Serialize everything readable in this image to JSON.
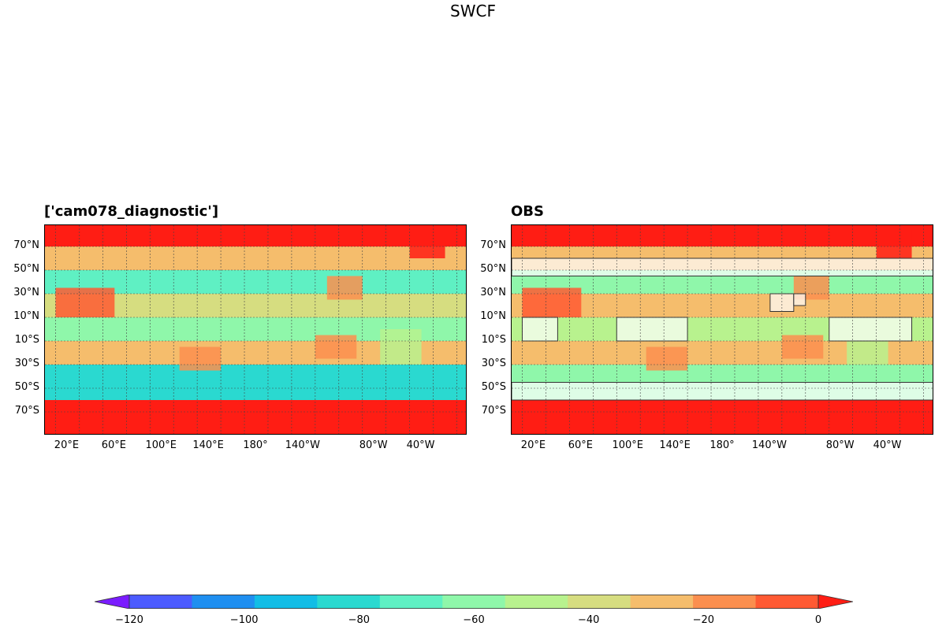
{
  "figure": {
    "title": "SWCF"
  },
  "chart_data": [
    {
      "type": "heatmap",
      "panel": "model",
      "title": "['cam078_diagnostic']",
      "projection": "PlateCarree, central longitude 180",
      "lat_tick_labels": [
        "70°N",
        "50°N",
        "30°N",
        "10°N",
        "10°S",
        "30°S",
        "50°S",
        "70°S"
      ],
      "lon_tick_labels": [
        "20°E",
        "60°E",
        "100°E",
        "140°E",
        "180°",
        "140°W",
        "80°W",
        "40°W"
      ],
      "grid": true,
      "field_description_by_lat_band": [
        {
          "lat": "70N-90N",
          "value": -10
        },
        {
          "lat": "50N-70N",
          "value": -35
        },
        {
          "lat": "30N-50N",
          "value": -75
        },
        {
          "lat": "10N-30N",
          "value": -45
        },
        {
          "lat": "10S-10N",
          "value": -65
        },
        {
          "lat": "30S-10S",
          "value": -40
        },
        {
          "lat": "60S-30S",
          "value": -85
        },
        {
          "lat": "90S-60S",
          "value": -5
        }
      ]
    },
    {
      "type": "heatmap",
      "panel": "obs",
      "title": "OBS",
      "projection": "PlateCarree, central longitude 180",
      "lat_tick_labels": [
        "70°N",
        "50°N",
        "30°N",
        "10°N",
        "10°S",
        "30°S",
        "50°S",
        "70°S"
      ],
      "lon_tick_labels": [
        "20°E",
        "60°E",
        "100°E",
        "140°E",
        "180°",
        "140°W",
        "80°W",
        "40°W"
      ],
      "grid": true,
      "field_description_by_lat_band": [
        {
          "lat": "70N-90N",
          "value": -10
        },
        {
          "lat": "50N-70N",
          "value": -40
        },
        {
          "lat": "30N-50N",
          "value": -70
        },
        {
          "lat": "10N-30N",
          "value": -40
        },
        {
          "lat": "10S-10N",
          "value": -55
        },
        {
          "lat": "30S-10S",
          "value": -35
        },
        {
          "lat": "60S-30S",
          "value": -70
        },
        {
          "lat": "90S-60S",
          "value": -5
        }
      ],
      "overlay_regions_lonlat": [
        {
          "lon": [
            0,
            360
          ],
          "lat": [
            45,
            60
          ]
        },
        {
          "lon": [
            0,
            360
          ],
          "lat": [
            -60,
            -45
          ]
        },
        {
          "lon": [
            90,
            150
          ],
          "lat": [
            -10,
            10
          ]
        },
        {
          "lon": [
            -90,
            -20
          ],
          "lat": [
            -10,
            10
          ]
        },
        {
          "lon": [
            10,
            40
          ],
          "lat": [
            -10,
            10
          ]
        },
        {
          "lon": [
            -140,
            -120
          ],
          "lat": [
            15,
            30
          ]
        },
        {
          "lon": [
            -120,
            -110
          ],
          "lat": [
            20,
            30
          ]
        }
      ]
    }
  ],
  "colorbar": {
    "levels": [
      -130,
      -120,
      -110,
      -100,
      -90,
      -80,
      -70,
      -60,
      -50,
      -40,
      -30,
      -20,
      -10,
      0
    ],
    "colors": [
      "#7a1cff",
      "#4c5bff",
      "#1f8ff0",
      "#12bde6",
      "#2ad9d0",
      "#5ff0c3",
      "#8ff7aa",
      "#b8f28e",
      "#d6dd80",
      "#f5bd6c",
      "#fb8f4f",
      "#ff5a33",
      "#ff1d14"
    ],
    "extend": "both",
    "tick_values": [
      -120,
      -100,
      -80,
      -60,
      -40,
      -20,
      0
    ],
    "tick_labels": [
      "−120",
      "−100",
      "−80",
      "−60",
      "−40",
      "−20",
      "0"
    ]
  }
}
